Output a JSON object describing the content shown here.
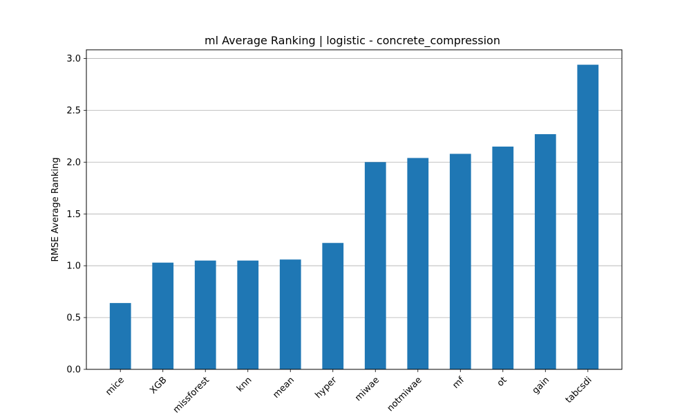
{
  "chart_data": {
    "type": "bar",
    "title": "ml Average Ranking | logistic - concrete_compression",
    "xlabel": "",
    "ylabel": "RMSE Average Ranking",
    "categories": [
      "mice",
      "XGB",
      "missforest",
      "knn",
      "mean",
      "hyper",
      "miwae",
      "notmiwae",
      "mf",
      "ot",
      "gain",
      "tabcsdi"
    ],
    "values": [
      0.64,
      1.03,
      1.05,
      1.05,
      1.06,
      1.22,
      2.0,
      2.04,
      2.08,
      2.15,
      2.27,
      2.94
    ],
    "yticks": [
      "0.0",
      "0.5",
      "1.0",
      "1.5",
      "2.0",
      "2.5",
      "3.0"
    ],
    "ylim": [
      0,
      3.084
    ],
    "grid": "y",
    "bar_color": "#1f77b4",
    "x_tick_rotation": 45
  }
}
